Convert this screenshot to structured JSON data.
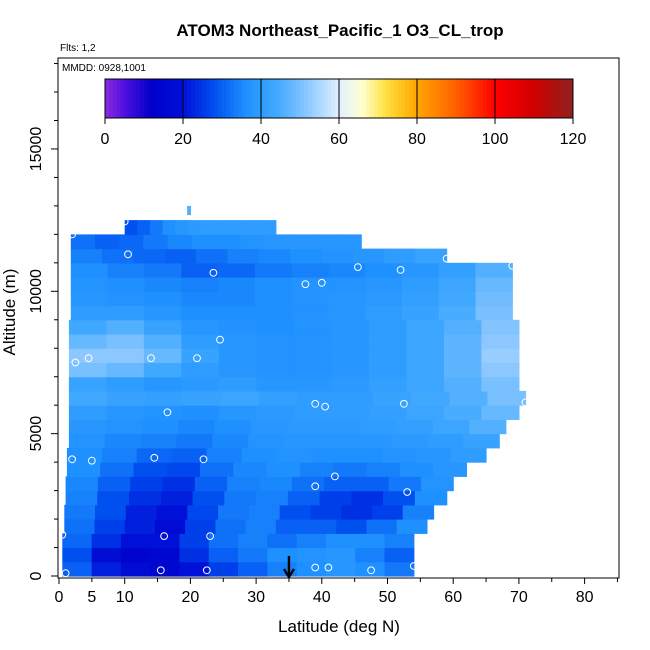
{
  "chart_data": {
    "type": "heatmap",
    "title": "ATOM3 Northeast_Pacific_1 O3_CL_trop",
    "flights_label": "Flts: 1,2",
    "dates_label": "MMDD: 0928,1001",
    "xlabel": "Latitude (deg N)",
    "ylabel": "Altitude (m)",
    "xlim": [
      0,
      85
    ],
    "ylim": [
      0,
      18000
    ],
    "xticks": [
      0,
      5,
      10,
      20,
      30,
      40,
      50,
      60,
      70,
      80
    ],
    "yticks": [
      0,
      5000,
      10000,
      15000
    ],
    "colorbar": {
      "range": [
        0,
        120
      ],
      "ticks": [
        0,
        20,
        40,
        60,
        80,
        100,
        120
      ],
      "stops": [
        {
          "v": 0,
          "c": "#8a2be2"
        },
        {
          "v": 5,
          "c": "#5010e0"
        },
        {
          "v": 12,
          "c": "#0000c8"
        },
        {
          "v": 20,
          "c": "#0010d8"
        },
        {
          "v": 28,
          "c": "#0050f0"
        },
        {
          "v": 36,
          "c": "#1e90ff"
        },
        {
          "v": 44,
          "c": "#40a8ff"
        },
        {
          "v": 52,
          "c": "#8cc8ff"
        },
        {
          "v": 60,
          "c": "#e0f0ff"
        },
        {
          "v": 66,
          "c": "#ffffd0"
        },
        {
          "v": 72,
          "c": "#ffe040"
        },
        {
          "v": 80,
          "c": "#ffa500"
        },
        {
          "v": 90,
          "c": "#ff6000"
        },
        {
          "v": 100,
          "c": "#ff0000"
        },
        {
          "v": 110,
          "c": "#d00000"
        },
        {
          "v": 120,
          "c": "#902020"
        }
      ]
    },
    "field": {
      "rows": [
        {
          "alt0": 0,
          "alt1": 500,
          "lat0": 0.5,
          "lat1": 54,
          "values": [
            30,
            22,
            18,
            16,
            20,
            26,
            30,
            34,
            36,
            38,
            36,
            33
          ]
        },
        {
          "alt0": 500,
          "alt1": 1000,
          "lat0": 0.5,
          "lat1": 54,
          "values": [
            28,
            18,
            14,
            16,
            24,
            30,
            33,
            36,
            37,
            38,
            34,
            30
          ]
        },
        {
          "alt0": 1000,
          "alt1": 1500,
          "lat0": 0.5,
          "lat1": 54,
          "values": [
            31,
            24,
            20,
            20,
            26,
            32,
            34,
            32,
            34,
            36,
            36,
            34
          ]
        },
        {
          "alt0": 1500,
          "alt1": 2000,
          "lat0": 0.8,
          "lat1": 56,
          "values": [
            32,
            26,
            22,
            18,
            26,
            32,
            34,
            30,
            30,
            28,
            32,
            36
          ]
        },
        {
          "alt0": 2000,
          "alt1": 2500,
          "lat0": 0.8,
          "lat1": 57,
          "values": [
            33,
            28,
            22,
            20,
            27,
            33,
            34,
            28,
            26,
            24,
            26,
            34
          ]
        },
        {
          "alt0": 2500,
          "alt1": 3000,
          "lat0": 1.0,
          "lat1": 59,
          "values": [
            34,
            28,
            24,
            22,
            28,
            33,
            34,
            30,
            26,
            24,
            28,
            36
          ]
        },
        {
          "alt0": 3000,
          "alt1": 3500,
          "lat0": 1.0,
          "lat1": 60,
          "values": [
            35,
            30,
            26,
            24,
            30,
            34,
            35,
            32,
            30,
            30,
            33,
            37
          ]
        },
        {
          "alt0": 3500,
          "alt1": 4000,
          "lat0": 1.2,
          "lat1": 62,
          "values": [
            36,
            32,
            28,
            27,
            32,
            35,
            36,
            34,
            33,
            34,
            36,
            38
          ]
        },
        {
          "alt0": 4000,
          "alt1": 4500,
          "lat0": 1.2,
          "lat1": 65,
          "values": [
            36,
            34,
            31,
            30,
            34,
            36,
            37,
            36,
            36,
            37,
            38,
            40
          ]
        },
        {
          "alt0": 4500,
          "alt1": 5000,
          "lat0": 1.5,
          "lat1": 67,
          "values": [
            37,
            35,
            34,
            33,
            35,
            37,
            38,
            38,
            38,
            39,
            40,
            42
          ]
        },
        {
          "alt0": 5000,
          "alt1": 5500,
          "lat0": 1.5,
          "lat1": 68,
          "values": [
            38,
            37,
            36,
            35,
            36,
            38,
            39,
            39,
            40,
            41,
            43,
            46
          ]
        },
        {
          "alt0": 5500,
          "alt1": 6000,
          "lat0": 1.5,
          "lat1": 70,
          "values": [
            40,
            38,
            37,
            36,
            38,
            39,
            40,
            40,
            41,
            43,
            45,
            48
          ]
        },
        {
          "alt0": 6000,
          "alt1": 6500,
          "lat0": 1.5,
          "lat1": 71,
          "values": [
            44,
            42,
            41,
            42,
            43,
            41,
            40,
            40,
            42,
            44,
            46,
            50
          ]
        },
        {
          "alt0": 6500,
          "alt1": 7000,
          "lat0": 1.5,
          "lat1": 70,
          "values": [
            42,
            40,
            38,
            39,
            40,
            38,
            38,
            39,
            41,
            43,
            46,
            50
          ]
        },
        {
          "alt0": 7000,
          "alt1": 7500,
          "lat0": 1.5,
          "lat1": 70,
          "values": [
            50,
            48,
            44,
            40,
            38,
            37,
            37,
            38,
            40,
            43,
            47,
            52
          ]
        },
        {
          "alt0": 7500,
          "alt1": 8000,
          "lat0": 1.5,
          "lat1": 70,
          "values": [
            52,
            52,
            48,
            42,
            38,
            37,
            37,
            38,
            40,
            43,
            47,
            53
          ]
        },
        {
          "alt0": 8000,
          "alt1": 8500,
          "lat0": 1.5,
          "lat1": 70,
          "values": [
            48,
            50,
            46,
            40,
            38,
            37,
            37,
            38,
            40,
            43,
            47,
            52
          ]
        },
        {
          "alt0": 8500,
          "alt1": 9000,
          "lat0": 1.5,
          "lat1": 70,
          "values": [
            44,
            46,
            42,
            38,
            37,
            36,
            37,
            38,
            40,
            43,
            46,
            51
          ]
        },
        {
          "alt0": 9000,
          "alt1": 9500,
          "lat0": 1.8,
          "lat1": 69,
          "values": [
            40,
            40,
            38,
            36,
            36,
            36,
            37,
            38,
            40,
            42,
            45,
            50
          ]
        },
        {
          "alt0": 9500,
          "alt1": 10000,
          "lat0": 1.8,
          "lat1": 69,
          "values": [
            38,
            37,
            36,
            35,
            35,
            36,
            37,
            38,
            39,
            41,
            44,
            49
          ]
        },
        {
          "alt0": 10000,
          "alt1": 10500,
          "lat0": 1.8,
          "lat1": 69,
          "values": [
            37,
            36,
            35,
            34,
            35,
            36,
            37,
            37,
            38,
            40,
            43,
            48
          ]
        },
        {
          "alt0": 10500,
          "alt1": 11000,
          "lat0": 1.8,
          "lat1": 69,
          "values": [
            36,
            34,
            33,
            30,
            31,
            33,
            34,
            35,
            36,
            38,
            41,
            46
          ]
        },
        {
          "alt0": 11000,
          "alt1": 11500,
          "lat0": 1.8,
          "lat1": 59,
          "values": [
            34,
            32,
            31,
            30,
            32,
            34,
            35,
            36,
            37,
            38,
            40,
            42
          ]
        },
        {
          "alt0": 11500,
          "alt1": 12000,
          "lat0": 1.8,
          "lat1": 46,
          "values": [
            32,
            30,
            31,
            33,
            35,
            36,
            36,
            37,
            38,
            38,
            38,
            38
          ]
        },
        {
          "alt0": 12000,
          "alt1": 12500,
          "lat0": 10,
          "lat1": 33,
          "values": [
            28,
            30,
            33,
            36,
            38,
            39,
            40,
            40,
            40,
            40,
            40,
            40
          ]
        },
        {
          "alt0": 12700,
          "alt1": 13000,
          "lat0": 19.5,
          "lat1": 20,
          "values": [
            46
          ]
        }
      ]
    },
    "sample_points": [
      [
        1,
        100
      ],
      [
        15.5,
        200
      ],
      [
        22.5,
        200
      ],
      [
        39,
        300
      ],
      [
        41,
        300
      ],
      [
        47.5,
        200
      ],
      [
        54,
        350
      ],
      [
        0.5,
        1450
      ],
      [
        16,
        1400
      ],
      [
        23,
        1400
      ],
      [
        39,
        3150
      ],
      [
        42,
        3500
      ],
      [
        53,
        2950
      ],
      [
        2,
        4100
      ],
      [
        5,
        4050
      ],
      [
        14.5,
        4150
      ],
      [
        22,
        4100
      ],
      [
        16.5,
        5750
      ],
      [
        39,
        6050
      ],
      [
        40.5,
        5950
      ],
      [
        52.5,
        6050
      ],
      [
        71,
        6100
      ],
      [
        2.5,
        7500
      ],
      [
        4.5,
        7650
      ],
      [
        14,
        7650
      ],
      [
        21,
        7650
      ],
      [
        24.5,
        8300
      ],
      [
        37.5,
        10250
      ],
      [
        40,
        10300
      ],
      [
        23.5,
        10650
      ],
      [
        45.5,
        10850
      ],
      [
        52,
        10750
      ],
      [
        59,
        11150
      ],
      [
        69,
        10900
      ],
      [
        10.5,
        11300
      ],
      [
        2,
        12000
      ],
      [
        10,
        12450
      ]
    ],
    "marker_arrow_lat": 35
  }
}
